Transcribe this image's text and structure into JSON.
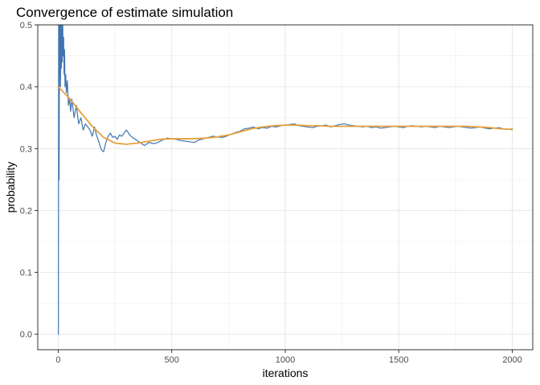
{
  "chart_data": {
    "type": "line",
    "title": "Convergence of estimate simulation",
    "xlabel": "iterations",
    "ylabel": "probability",
    "xlim": [
      -90,
      2090
    ],
    "ylim": [
      -0.025,
      0.5
    ],
    "x_ticks": [
      0,
      500,
      1000,
      1500,
      2000
    ],
    "x_tick_labels": [
      "0",
      "500",
      "1000",
      "1500",
      "2000"
    ],
    "y_ticks": [
      0.0,
      0.1,
      0.2,
      0.3,
      0.4,
      0.5
    ],
    "y_tick_labels": [
      "0.0",
      "0.1",
      "0.2",
      "0.3",
      "0.4",
      "0.5"
    ],
    "grid": true,
    "legend": "none",
    "series": [
      {
        "color": "#4075b0",
        "style": "line",
        "x": [
          1,
          2,
          3,
          4,
          5,
          6,
          7,
          8,
          10,
          12,
          14,
          16,
          18,
          20,
          22,
          24,
          26,
          28,
          30,
          33,
          36,
          40,
          45,
          50,
          55,
          60,
          70,
          80,
          90,
          100,
          110,
          120,
          130,
          140,
          150,
          160,
          170,
          180,
          190,
          200,
          210,
          220,
          230,
          240,
          250,
          260,
          270,
          280,
          290,
          300,
          320,
          340,
          360,
          380,
          400,
          420,
          440,
          460,
          480,
          500,
          520,
          540,
          560,
          580,
          600,
          620,
          640,
          660,
          680,
          700,
          720,
          740,
          760,
          780,
          800,
          820,
          840,
          860,
          880,
          900,
          920,
          940,
          960,
          980,
          1000,
          1020,
          1040,
          1060,
          1080,
          1100,
          1120,
          1140,
          1160,
          1180,
          1200,
          1220,
          1240,
          1260,
          1280,
          1300,
          1320,
          1340,
          1360,
          1380,
          1400,
          1420,
          1440,
          1460,
          1480,
          1500,
          1520,
          1540,
          1560,
          1580,
          1600,
          1620,
          1640,
          1660,
          1680,
          1700,
          1720,
          1740,
          1760,
          1780,
          1800,
          1820,
          1840,
          1860,
          1880,
          1900,
          1920,
          1940,
          1960,
          1980,
          2000
        ],
        "y": [
          0.0,
          0.5,
          0.333,
          0.25,
          0.4,
          0.5,
          0.429,
          0.5,
          0.4,
          0.5,
          0.43,
          0.5,
          0.44,
          0.5,
          0.45,
          0.48,
          0.42,
          0.46,
          0.4,
          0.42,
          0.39,
          0.41,
          0.37,
          0.38,
          0.36,
          0.38,
          0.35,
          0.37,
          0.34,
          0.35,
          0.33,
          0.34,
          0.335,
          0.33,
          0.32,
          0.335,
          0.32,
          0.31,
          0.298,
          0.295,
          0.31,
          0.32,
          0.325,
          0.318,
          0.32,
          0.315,
          0.322,
          0.32,
          0.325,
          0.33,
          0.32,
          0.315,
          0.31,
          0.305,
          0.31,
          0.308,
          0.31,
          0.314,
          0.317,
          0.316,
          0.315,
          0.313,
          0.312,
          0.311,
          0.31,
          0.314,
          0.316,
          0.318,
          0.32,
          0.319,
          0.318,
          0.32,
          0.323,
          0.326,
          0.328,
          0.332,
          0.333,
          0.335,
          0.332,
          0.334,
          0.333,
          0.336,
          0.335,
          0.337,
          0.338,
          0.339,
          0.34,
          0.337,
          0.336,
          0.335,
          0.334,
          0.336,
          0.337,
          0.338,
          0.335,
          0.337,
          0.339,
          0.34,
          0.338,
          0.337,
          0.336,
          0.335,
          0.336,
          0.334,
          0.335,
          0.333,
          0.334,
          0.335,
          0.336,
          0.335,
          0.334,
          0.336,
          0.337,
          0.336,
          0.335,
          0.336,
          0.335,
          0.334,
          0.336,
          0.335,
          0.334,
          0.335,
          0.336,
          0.335,
          0.334,
          0.333,
          0.334,
          0.335,
          0.333,
          0.332,
          0.333,
          0.334,
          0.332,
          0.331,
          0.332
        ]
      },
      {
        "color": "#e69f3c",
        "style": "smooth",
        "x": [
          0,
          50,
          100,
          150,
          200,
          250,
          300,
          350,
          400,
          450,
          500,
          550,
          600,
          650,
          700,
          750,
          800,
          850,
          900,
          950,
          1000,
          1050,
          1100,
          1150,
          1200,
          1250,
          1300,
          1350,
          1400,
          1450,
          1500,
          1550,
          1600,
          1650,
          1700,
          1750,
          1800,
          1850,
          1900,
          1950,
          2000
        ],
        "y": [
          0.4,
          0.381,
          0.358,
          0.336,
          0.318,
          0.309,
          0.307,
          0.309,
          0.312,
          0.315,
          0.316,
          0.316,
          0.316,
          0.317,
          0.319,
          0.322,
          0.327,
          0.332,
          0.335,
          0.337,
          0.338,
          0.338,
          0.337,
          0.337,
          0.336,
          0.336,
          0.336,
          0.336,
          0.336,
          0.336,
          0.336,
          0.336,
          0.336,
          0.336,
          0.336,
          0.336,
          0.336,
          0.335,
          0.334,
          0.332,
          0.331
        ]
      }
    ]
  }
}
